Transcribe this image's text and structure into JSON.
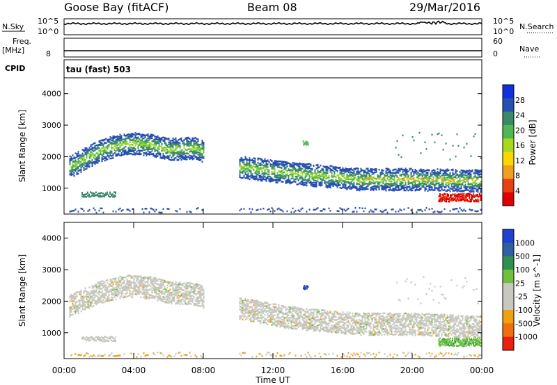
{
  "header": {
    "station": "Goose Bay (fitACF)",
    "beam": "Beam 08",
    "date": "29/Mar/2016"
  },
  "panels": {
    "nsky_label": "N.Sky",
    "nsearch_label": "N.Search",
    "nsky_ticks": [
      "10^5",
      "10^0"
    ],
    "nsearch_ticks": [
      "10^5",
      "10^0"
    ],
    "freq_label_1": "Freq.",
    "freq_label_2": "[MHz]",
    "freq_tick": "8",
    "nave_label": "Nave",
    "nave_ticks": [
      "60",
      "0"
    ],
    "cpid_label": "CPID",
    "mode_text": "tau (fast) 503"
  },
  "chart_data": [
    {
      "type": "heatmap",
      "id": "power",
      "ylabel": "Slant Range [km]",
      "xlabel": "",
      "yticks": [
        "4000",
        "3000",
        "2000",
        "1000"
      ],
      "ylim": [
        180,
        4500
      ],
      "colorbar_label": "Power [dB]",
      "colorbar_ticks": [
        "28",
        "24",
        "20",
        "16",
        "12",
        "8",
        "4"
      ],
      "colorbar_colors": [
        "#1030e0",
        "#2850b0",
        "#3a8a6a",
        "#50b850",
        "#a8d820",
        "#f8d800",
        "#f0a020",
        "#e84010",
        "#e00000"
      ],
      "features": [
        {
          "name": "main echo band",
          "x_hours": [
            0,
            2,
            3.5,
            5,
            6,
            7.5,
            10,
            13,
            17,
            20,
            24
          ],
          "y_km": [
            1600,
            2200,
            2450,
            2400,
            2250,
            2300,
            1700,
            1500,
            1300,
            1300,
            1250
          ]
        },
        {
          "name": "near-range echoes",
          "x_hours": [
            1,
            3
          ],
          "y_km": [
            800,
            800
          ]
        },
        {
          "name": "strong near echo",
          "x_hours": [
            21.5,
            24
          ],
          "y_km": [
            700,
            700
          ]
        }
      ]
    },
    {
      "type": "heatmap",
      "id": "velocity",
      "ylabel": "Slant Range [km]",
      "xlabel": "Time UT",
      "xticks": [
        "00:00",
        "04:00",
        "08:00",
        "12:00",
        "16:00",
        "20:00",
        "00:00"
      ],
      "yticks": [
        "4000",
        "3000",
        "2000",
        "1000"
      ],
      "ylim": [
        180,
        4500
      ],
      "colorbar_label": "Velocity [m s^-1]",
      "colorbar_ticks": [
        "1000",
        "500",
        "100",
        "25",
        "-25",
        "-100",
        "-500",
        "-1000"
      ],
      "colorbar_colors": [
        "#2040d0",
        "#3060a0",
        "#2f9050",
        "#70c040",
        "#c8c8c0",
        "#c8c8c0",
        "#f0a010",
        "#f07010",
        "#e82010"
      ],
      "features": [
        {
          "name": "ground scatter band",
          "x_hours": [
            0,
            2,
            3.5,
            5,
            6,
            7.5,
            10,
            13,
            17,
            20,
            24
          ],
          "y_km": [
            1800,
            2300,
            2500,
            2450,
            2300,
            2250,
            1800,
            1500,
            1300,
            1300,
            1200
          ]
        },
        {
          "name": "blue patch",
          "x_hours": [
            13.8
          ],
          "y_km": [
            2450
          ]
        },
        {
          "name": "green near echo",
          "x_hours": [
            21.5,
            24
          ],
          "y_km": [
            800,
            800
          ]
        }
      ]
    }
  ],
  "xaxis_label": "Time UT"
}
